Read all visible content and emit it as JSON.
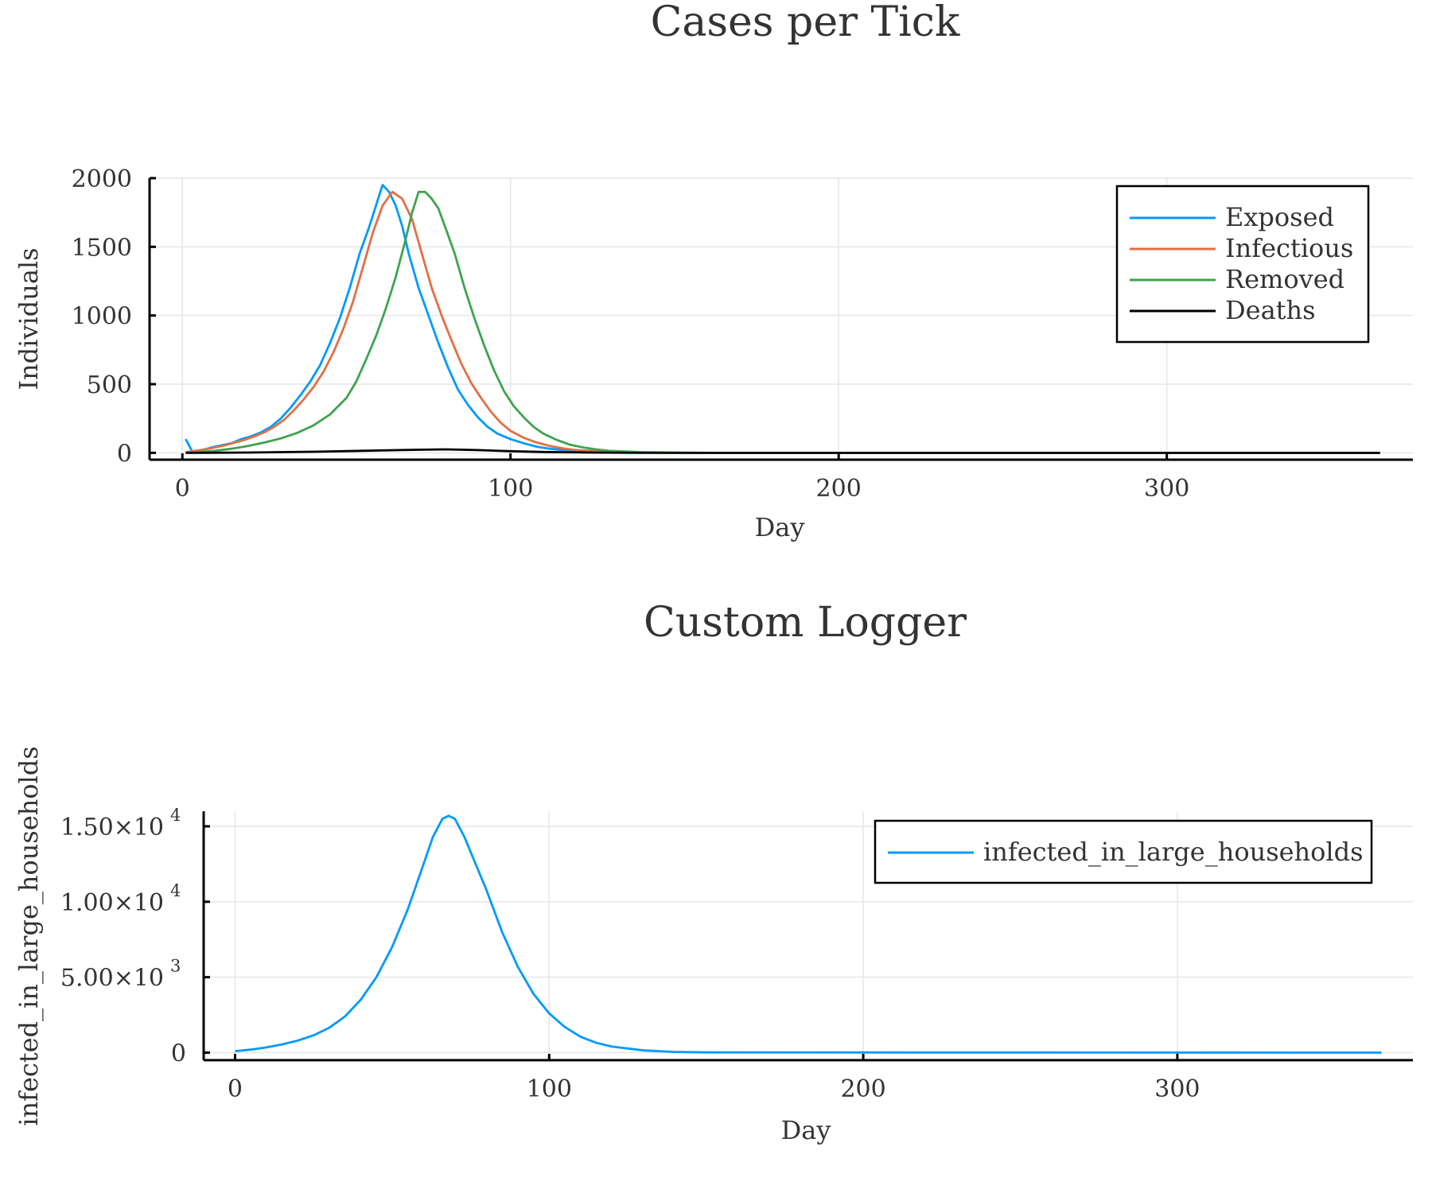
{
  "chart_data": [
    {
      "type": "line",
      "title": "Cases per Tick",
      "xlabel": "Day",
      "ylabel": "Individuals",
      "xlim": [
        -10,
        375
      ],
      "ylim": [
        -50,
        2000
      ],
      "xticks": [
        0,
        100,
        200,
        300
      ],
      "yticks": [
        0,
        500,
        1000,
        1500,
        2000
      ],
      "xtick_labels": [
        "0",
        "100",
        "200",
        "300"
      ],
      "ytick_labels": [
        "0",
        "500",
        "1000",
        "1500",
        "2000"
      ],
      "grid": true,
      "legend_position": "top-right",
      "x_end": 365,
      "series": [
        {
          "name": "Exposed",
          "color": "#009AFA",
          "points": [
            [
              1,
              100
            ],
            [
              3,
              10
            ],
            [
              6,
              20
            ],
            [
              9,
              40
            ],
            [
              12,
              55
            ],
            [
              15,
              70
            ],
            [
              18,
              100
            ],
            [
              21,
              120
            ],
            [
              24,
              150
            ],
            [
              27,
              190
            ],
            [
              30,
              250
            ],
            [
              33,
              330
            ],
            [
              36,
              420
            ],
            [
              39,
              520
            ],
            [
              42,
              640
            ],
            [
              45,
              800
            ],
            [
              48,
              980
            ],
            [
              51,
              1200
            ],
            [
              54,
              1450
            ],
            [
              57,
              1650
            ],
            [
              59,
              1800
            ],
            [
              61,
              1950
            ],
            [
              63,
              1900
            ],
            [
              65,
              1800
            ],
            [
              67,
              1650
            ],
            [
              69,
              1450
            ],
            [
              72,
              1200
            ],
            [
              75,
              1000
            ],
            [
              78,
              800
            ],
            [
              81,
              620
            ],
            [
              84,
              460
            ],
            [
              87,
              350
            ],
            [
              90,
              260
            ],
            [
              93,
              190
            ],
            [
              96,
              140
            ],
            [
              100,
              100
            ],
            [
              104,
              70
            ],
            [
              108,
              45
            ],
            [
              112,
              30
            ],
            [
              116,
              20
            ],
            [
              120,
              12
            ],
            [
              130,
              5
            ],
            [
              140,
              2
            ],
            [
              150,
              0
            ],
            [
              365,
              0
            ]
          ]
        },
        {
          "name": "Infectious",
          "color": "#E26F46",
          "points": [
            [
              1,
              5
            ],
            [
              4,
              15
            ],
            [
              7,
              25
            ],
            [
              10,
              40
            ],
            [
              13,
              55
            ],
            [
              16,
              75
            ],
            [
              19,
              95
            ],
            [
              22,
              120
            ],
            [
              25,
              150
            ],
            [
              28,
              190
            ],
            [
              31,
              240
            ],
            [
              34,
              310
            ],
            [
              37,
              390
            ],
            [
              40,
              480
            ],
            [
              43,
              590
            ],
            [
              46,
              730
            ],
            [
              49,
              900
            ],
            [
              52,
              1100
            ],
            [
              55,
              1350
            ],
            [
              58,
              1600
            ],
            [
              61,
              1800
            ],
            [
              64,
              1900
            ],
            [
              67,
              1850
            ],
            [
              70,
              1700
            ],
            [
              73,
              1450
            ],
            [
              76,
              1200
            ],
            [
              79,
              1000
            ],
            [
              82,
              820
            ],
            [
              85,
              650
            ],
            [
              88,
              510
            ],
            [
              91,
              400
            ],
            [
              94,
              300
            ],
            [
              97,
              220
            ],
            [
              100,
              160
            ],
            [
              104,
              110
            ],
            [
              108,
              75
            ],
            [
              112,
              50
            ],
            [
              116,
              32
            ],
            [
              120,
              20
            ],
            [
              130,
              8
            ],
            [
              140,
              3
            ],
            [
              150,
              1
            ],
            [
              160,
              0
            ],
            [
              365,
              0
            ]
          ]
        },
        {
          "name": "Removed",
          "color": "#3DA44D",
          "points": [
            [
              1,
              0
            ],
            [
              5,
              5
            ],
            [
              10,
              15
            ],
            [
              15,
              30
            ],
            [
              20,
              50
            ],
            [
              25,
              75
            ],
            [
              30,
              105
            ],
            [
              35,
              145
            ],
            [
              40,
              200
            ],
            [
              45,
              280
            ],
            [
              50,
              400
            ],
            [
              53,
              520
            ],
            [
              56,
              680
            ],
            [
              59,
              850
            ],
            [
              62,
              1050
            ],
            [
              65,
              1280
            ],
            [
              68,
              1550
            ],
            [
              70,
              1750
            ],
            [
              72,
              1900
            ],
            [
              74,
              1900
            ],
            [
              76,
              1850
            ],
            [
              78,
              1780
            ],
            [
              80,
              1650
            ],
            [
              83,
              1450
            ],
            [
              86,
              1200
            ],
            [
              89,
              980
            ],
            [
              92,
              780
            ],
            [
              95,
              600
            ],
            [
              98,
              450
            ],
            [
              101,
              340
            ],
            [
              104,
              260
            ],
            [
              107,
              190
            ],
            [
              110,
              140
            ],
            [
              114,
              95
            ],
            [
              118,
              60
            ],
            [
              122,
              40
            ],
            [
              126,
              25
            ],
            [
              130,
              15
            ],
            [
              140,
              5
            ],
            [
              150,
              2
            ],
            [
              160,
              0
            ],
            [
              365,
              0
            ]
          ]
        },
        {
          "name": "Deaths",
          "color": "#000000",
          "points": [
            [
              1,
              0
            ],
            [
              20,
              2
            ],
            [
              40,
              8
            ],
            [
              55,
              15
            ],
            [
              70,
              22
            ],
            [
              80,
              25
            ],
            [
              90,
              20
            ],
            [
              100,
              12
            ],
            [
              110,
              6
            ],
            [
              125,
              2
            ],
            [
              140,
              0
            ],
            [
              365,
              0
            ]
          ]
        }
      ]
    },
    {
      "type": "line",
      "title": "Custom Logger",
      "xlabel": "Day",
      "ylabel": "infected_in_large_households",
      "xlim": [
        -10,
        375
      ],
      "ylim": [
        -500,
        16000
      ],
      "xticks": [
        0,
        100,
        200,
        300
      ],
      "yticks": [
        0,
        5000,
        10000,
        15000
      ],
      "xtick_labels": [
        "0",
        "100",
        "200",
        "300"
      ],
      "ytick_labels": [
        {
          "mantissa": "0",
          "exponent": ""
        },
        {
          "mantissa": "5.00×10",
          "exponent": "3"
        },
        {
          "mantissa": "1.00×10",
          "exponent": "4"
        },
        {
          "mantissa": "1.50×10",
          "exponent": "4"
        }
      ],
      "grid": true,
      "legend_position": "top-right",
      "series": [
        {
          "name": "infected_in_large_households",
          "color": "#009AFA",
          "points": [
            [
              0,
              100
            ],
            [
              5,
              200
            ],
            [
              10,
              350
            ],
            [
              15,
              550
            ],
            [
              20,
              800
            ],
            [
              25,
              1150
            ],
            [
              30,
              1650
            ],
            [
              35,
              2400
            ],
            [
              40,
              3500
            ],
            [
              45,
              5000
            ],
            [
              50,
              7000
            ],
            [
              55,
              9500
            ],
            [
              60,
              12500
            ],
            [
              63,
              14300
            ],
            [
              66,
              15500
            ],
            [
              68,
              15700
            ],
            [
              70,
              15500
            ],
            [
              73,
              14300
            ],
            [
              76,
              12800
            ],
            [
              80,
              10800
            ],
            [
              85,
              8000
            ],
            [
              90,
              5700
            ],
            [
              95,
              3900
            ],
            [
              100,
              2600
            ],
            [
              105,
              1700
            ],
            [
              110,
              1050
            ],
            [
              115,
              650
            ],
            [
              120,
              400
            ],
            [
              130,
              150
            ],
            [
              140,
              50
            ],
            [
              150,
              15
            ],
            [
              365,
              0
            ]
          ]
        }
      ]
    }
  ]
}
